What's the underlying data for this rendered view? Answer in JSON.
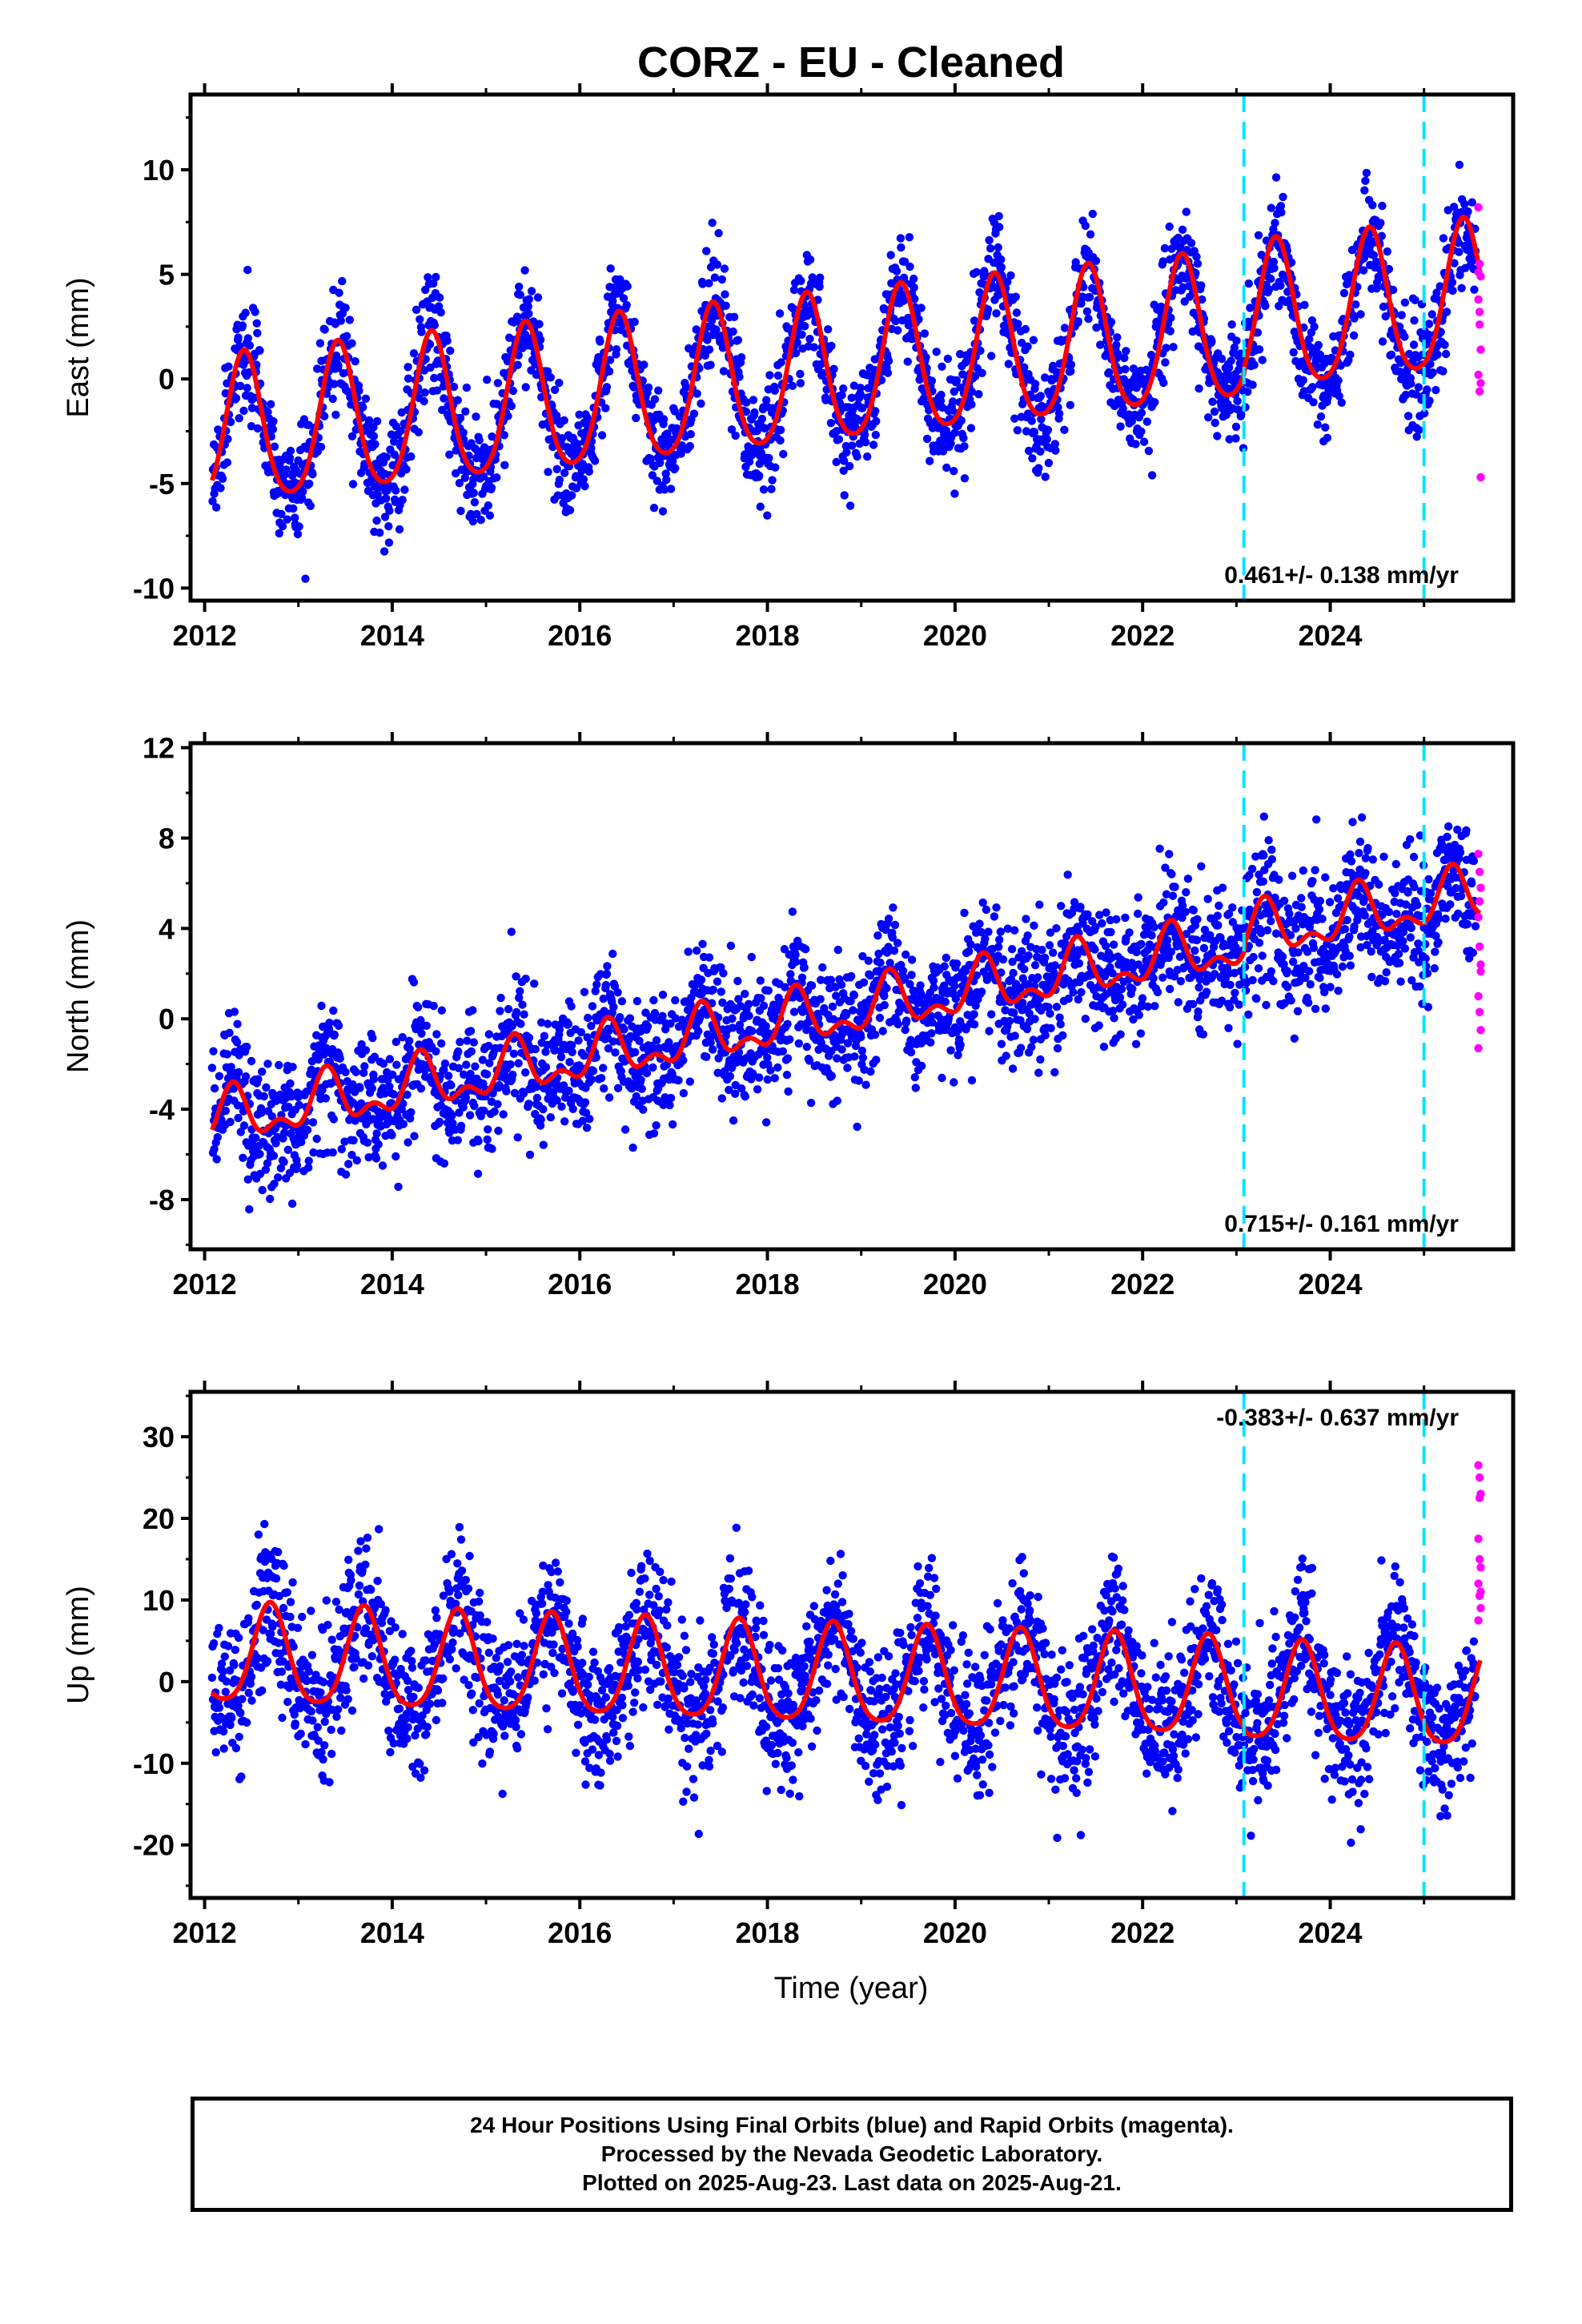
{
  "title": "CORZ  - EU - Cleaned",
  "xlabel": "Time (year)",
  "caption": {
    "line1": "24 Hour Positions Using Final Orbits (blue) and Rapid Orbits (magenta).",
    "line2": "Processed by the Nevada Geodetic Laboratory.",
    "line3": "Plotted on 2025-Aug-23. Last data on 2025-Aug-21."
  },
  "colors": {
    "final_orbits": "#0000ff",
    "rapid_orbits": "#ff00ff",
    "model_fit": "#ff0000",
    "events": "#00e5ff"
  },
  "chart_data": [
    {
      "type": "scatter",
      "component": "east",
      "ylabel": "East (mm)",
      "xlim": [
        2011.85,
        2025.95
      ],
      "ylim": [
        -10.6,
        13.6
      ],
      "yticks": [
        -10,
        -5,
        0,
        5,
        10
      ],
      "xticks": [
        2012,
        2014,
        2016,
        2018,
        2020,
        2022,
        2024
      ],
      "rate_label": "0.461+/- 0.138 mm/yr",
      "rate_position": "bottom-right",
      "event_lines": [
        2023.08,
        2025.0
      ],
      "model": {
        "trend_mm_per_yr": 0.461,
        "offset_at_2012": -2.8,
        "annual_amplitude": 3.5,
        "annual_peak": 0.42,
        "semiannual_amplitude": 0.5,
        "scatter_sd": 1.3
      },
      "rapid_points": [
        8.2,
        5.5,
        4.9,
        3.8,
        2.6,
        1.4,
        0.2,
        -0.6,
        -4.7,
        5.1,
        3.2,
        -0.2
      ],
      "series": [
        {
          "name": "Final Orbits (blue)"
        },
        {
          "name": "Rapid Orbits (magenta)"
        },
        {
          "name": "Model fit (red)"
        }
      ]
    },
    {
      "type": "scatter",
      "component": "north",
      "ylabel": "North (mm)",
      "xlim": [
        2011.85,
        2025.95
      ],
      "ylim": [
        -10.2,
        12.2
      ],
      "yticks": [
        -8,
        -4,
        0,
        4,
        8,
        12
      ],
      "xticks": [
        2012,
        2014,
        2016,
        2018,
        2020,
        2022,
        2024
      ],
      "rate_label": "0.715+/- 0.161 mm/yr",
      "rate_position": "bottom-right",
      "event_lines": [
        2023.08,
        2025.0
      ],
      "model": {
        "trend_mm_per_yr": 0.715,
        "offset_at_2012": -4.6,
        "annual_amplitude": 1.0,
        "annual_peak": 0.3,
        "semiannual_amplitude": 0.6,
        "scatter_sd": 1.5
      },
      "rapid_points": [
        7.3,
        6.5,
        5.8,
        4.5,
        3.2,
        2.1,
        1.0,
        0.3,
        -0.5,
        -1.3,
        5.2,
        2.4
      ],
      "series": [
        {
          "name": "Final Orbits (blue)"
        },
        {
          "name": "Rapid Orbits (magenta)"
        },
        {
          "name": "Model fit (red)"
        }
      ]
    },
    {
      "type": "scatter",
      "component": "up",
      "ylabel": "Up (mm)",
      "xlim": [
        2011.85,
        2025.95
      ],
      "ylim": [
        -26.5,
        35.5
      ],
      "yticks": [
        -20,
        -10,
        0,
        10,
        20,
        30
      ],
      "xticks": [
        2012,
        2014,
        2016,
        2018,
        2020,
        2022,
        2024
      ],
      "rate_label": "-0.383+/- 0.637 mm/yr",
      "rate_position": "top-right",
      "event_lines": [
        2023.08,
        2025.0
      ],
      "model": {
        "trend_mm_per_yr": -0.383,
        "offset_at_2012": 3.0,
        "annual_amplitude": 6.0,
        "annual_peak": 0.7,
        "semiannual_amplitude": 1.0,
        "scatter_sd": 4.5
      },
      "rapid_points": [
        26.5,
        25.0,
        23.0,
        17.5,
        15.0,
        14.0,
        12.0,
        10.5,
        9.0,
        7.5,
        22.5,
        11.0
      ],
      "series": [
        {
          "name": "Final Orbits (blue)"
        },
        {
          "name": "Rapid Orbits (magenta)"
        },
        {
          "name": "Model fit (red)"
        }
      ]
    }
  ]
}
